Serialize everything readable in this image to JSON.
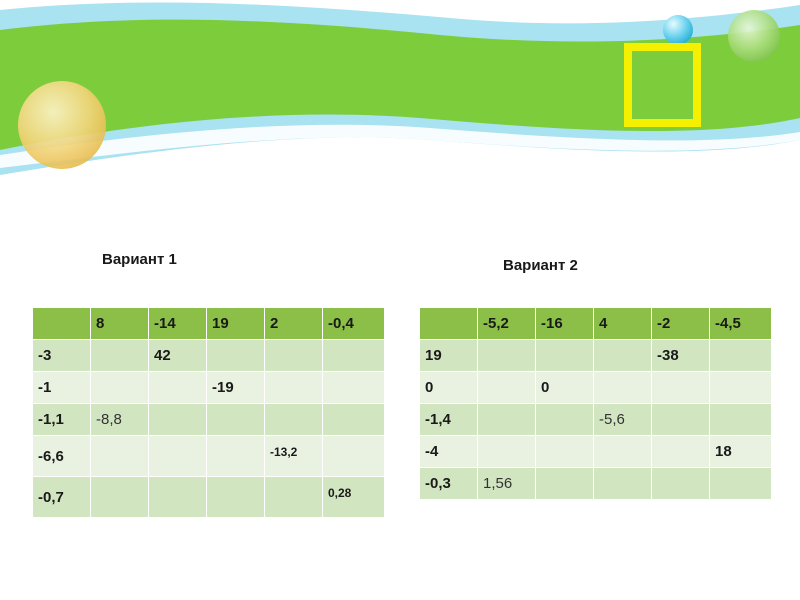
{
  "colors": {
    "header_row": "#8bbf47",
    "row_odd": "#d2e5c1",
    "row_even": "#e9f2e1",
    "banner_green": "#7ccc3c",
    "banner_blue": "#a9e2f0",
    "frame_yellow": "#f5f000"
  },
  "decor": {
    "icons": [
      "yellow-sphere-icon",
      "blue-bubble-icon",
      "green-bubble-icon",
      "yellow-square-frame-icon"
    ]
  },
  "variant1": {
    "title": "Вариант 1",
    "header": [
      "",
      "8",
      "-14",
      "19",
      "2",
      "-0,4"
    ],
    "rows": [
      [
        "-3",
        "",
        "42",
        "",
        "",
        ""
      ],
      [
        "-1",
        "",
        "",
        "-19",
        "",
        ""
      ],
      [
        "-1,1",
        "-8,8",
        "",
        "",
        "",
        ""
      ],
      [
        "-6,6",
        "",
        "",
        "",
        "-13,2",
        ""
      ],
      [
        "-0,7",
        "",
        "",
        "",
        "",
        "0,28"
      ]
    ]
  },
  "variant2": {
    "title": "Вариант 2",
    "header": [
      "",
      "-5,2",
      "-16",
      "4",
      "-2",
      "-4,5"
    ],
    "rows": [
      [
        "19",
        "",
        "",
        "",
        "-38",
        ""
      ],
      [
        "0",
        "",
        "0",
        "",
        "",
        ""
      ],
      [
        "-1,4",
        "",
        "",
        "-5,6",
        "",
        ""
      ],
      [
        "-4",
        "",
        "",
        "",
        "",
        "18"
      ],
      [
        "-0,3",
        "1,56",
        "",
        "",
        "",
        ""
      ]
    ]
  }
}
